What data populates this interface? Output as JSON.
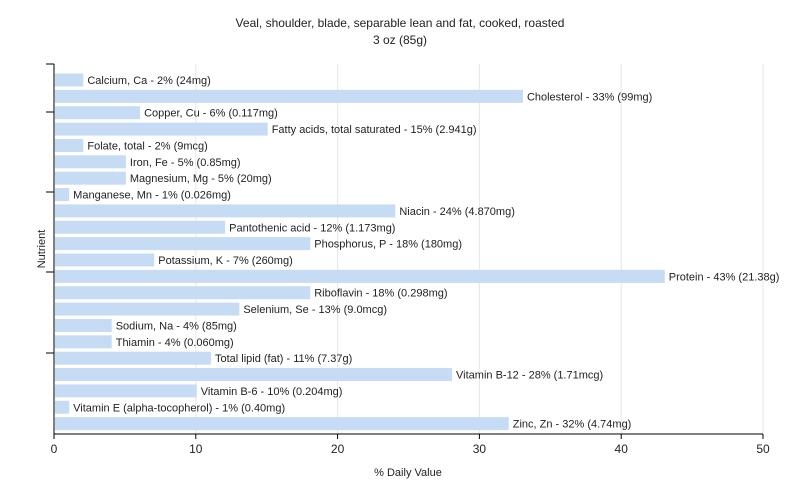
{
  "chart_data": {
    "type": "bar",
    "orientation": "horizontal",
    "title": "Veal, shoulder, blade, separable lean and fat, cooked, roasted",
    "subtitle": "3 oz (85g)",
    "xlabel": "% Daily Value",
    "ylabel": "Nutrient",
    "xlim": [
      0,
      50
    ],
    "xticks": [
      "0",
      "10",
      "20",
      "30",
      "40",
      "50"
    ],
    "grid": true,
    "bar_color": "#c6dcf5",
    "categories": [
      "Calcium, Ca",
      "Cholesterol",
      "Copper, Cu",
      "Fatty acids, total saturated",
      "Folate, total",
      "Iron, Fe",
      "Magnesium, Mg",
      "Manganese, Mn",
      "Niacin",
      "Pantothenic acid",
      "Phosphorus, P",
      "Potassium, K",
      "Protein",
      "Riboflavin",
      "Selenium, Se",
      "Sodium, Na",
      "Thiamin",
      "Total lipid (fat)",
      "Vitamin B-12",
      "Vitamin B-6",
      "Vitamin E (alpha-tocopherol)",
      "Zinc, Zn"
    ],
    "values": [
      2,
      33,
      6,
      15,
      2,
      5,
      5,
      1,
      24,
      12,
      18,
      7,
      43,
      18,
      13,
      4,
      4,
      11,
      28,
      10,
      1,
      32
    ],
    "labels": [
      "Calcium, Ca - 2% (24mg)",
      "Cholesterol - 33% (99mg)",
      "Copper, Cu - 6% (0.117mg)",
      "Fatty acids, total saturated - 15% (2.941g)",
      "Folate, total - 2% (9mcg)",
      "Iron, Fe - 5% (0.85mg)",
      "Magnesium, Mg - 5% (20mg)",
      "Manganese, Mn - 1% (0.026mg)",
      "Niacin - 24% (4.870mg)",
      "Pantothenic acid - 12% (1.173mg)",
      "Phosphorus, P - 18% (180mg)",
      "Potassium, K - 7% (260mg)",
      "Protein - 43% (21.38g)",
      "Riboflavin - 18% (0.298mg)",
      "Selenium, Se - 13% (9.0mcg)",
      "Sodium, Na - 4% (85mg)",
      "Thiamin - 4% (0.060mg)",
      "Total lipid (fat) - 11% (7.37g)",
      "Vitamin B-12 - 28% (1.71mcg)",
      "Vitamin B-6 - 10% (0.204mg)",
      "Vitamin E (alpha-tocopherol) - 1% (0.40mg)",
      "Zinc, Zn - 32% (4.74mg)"
    ]
  }
}
